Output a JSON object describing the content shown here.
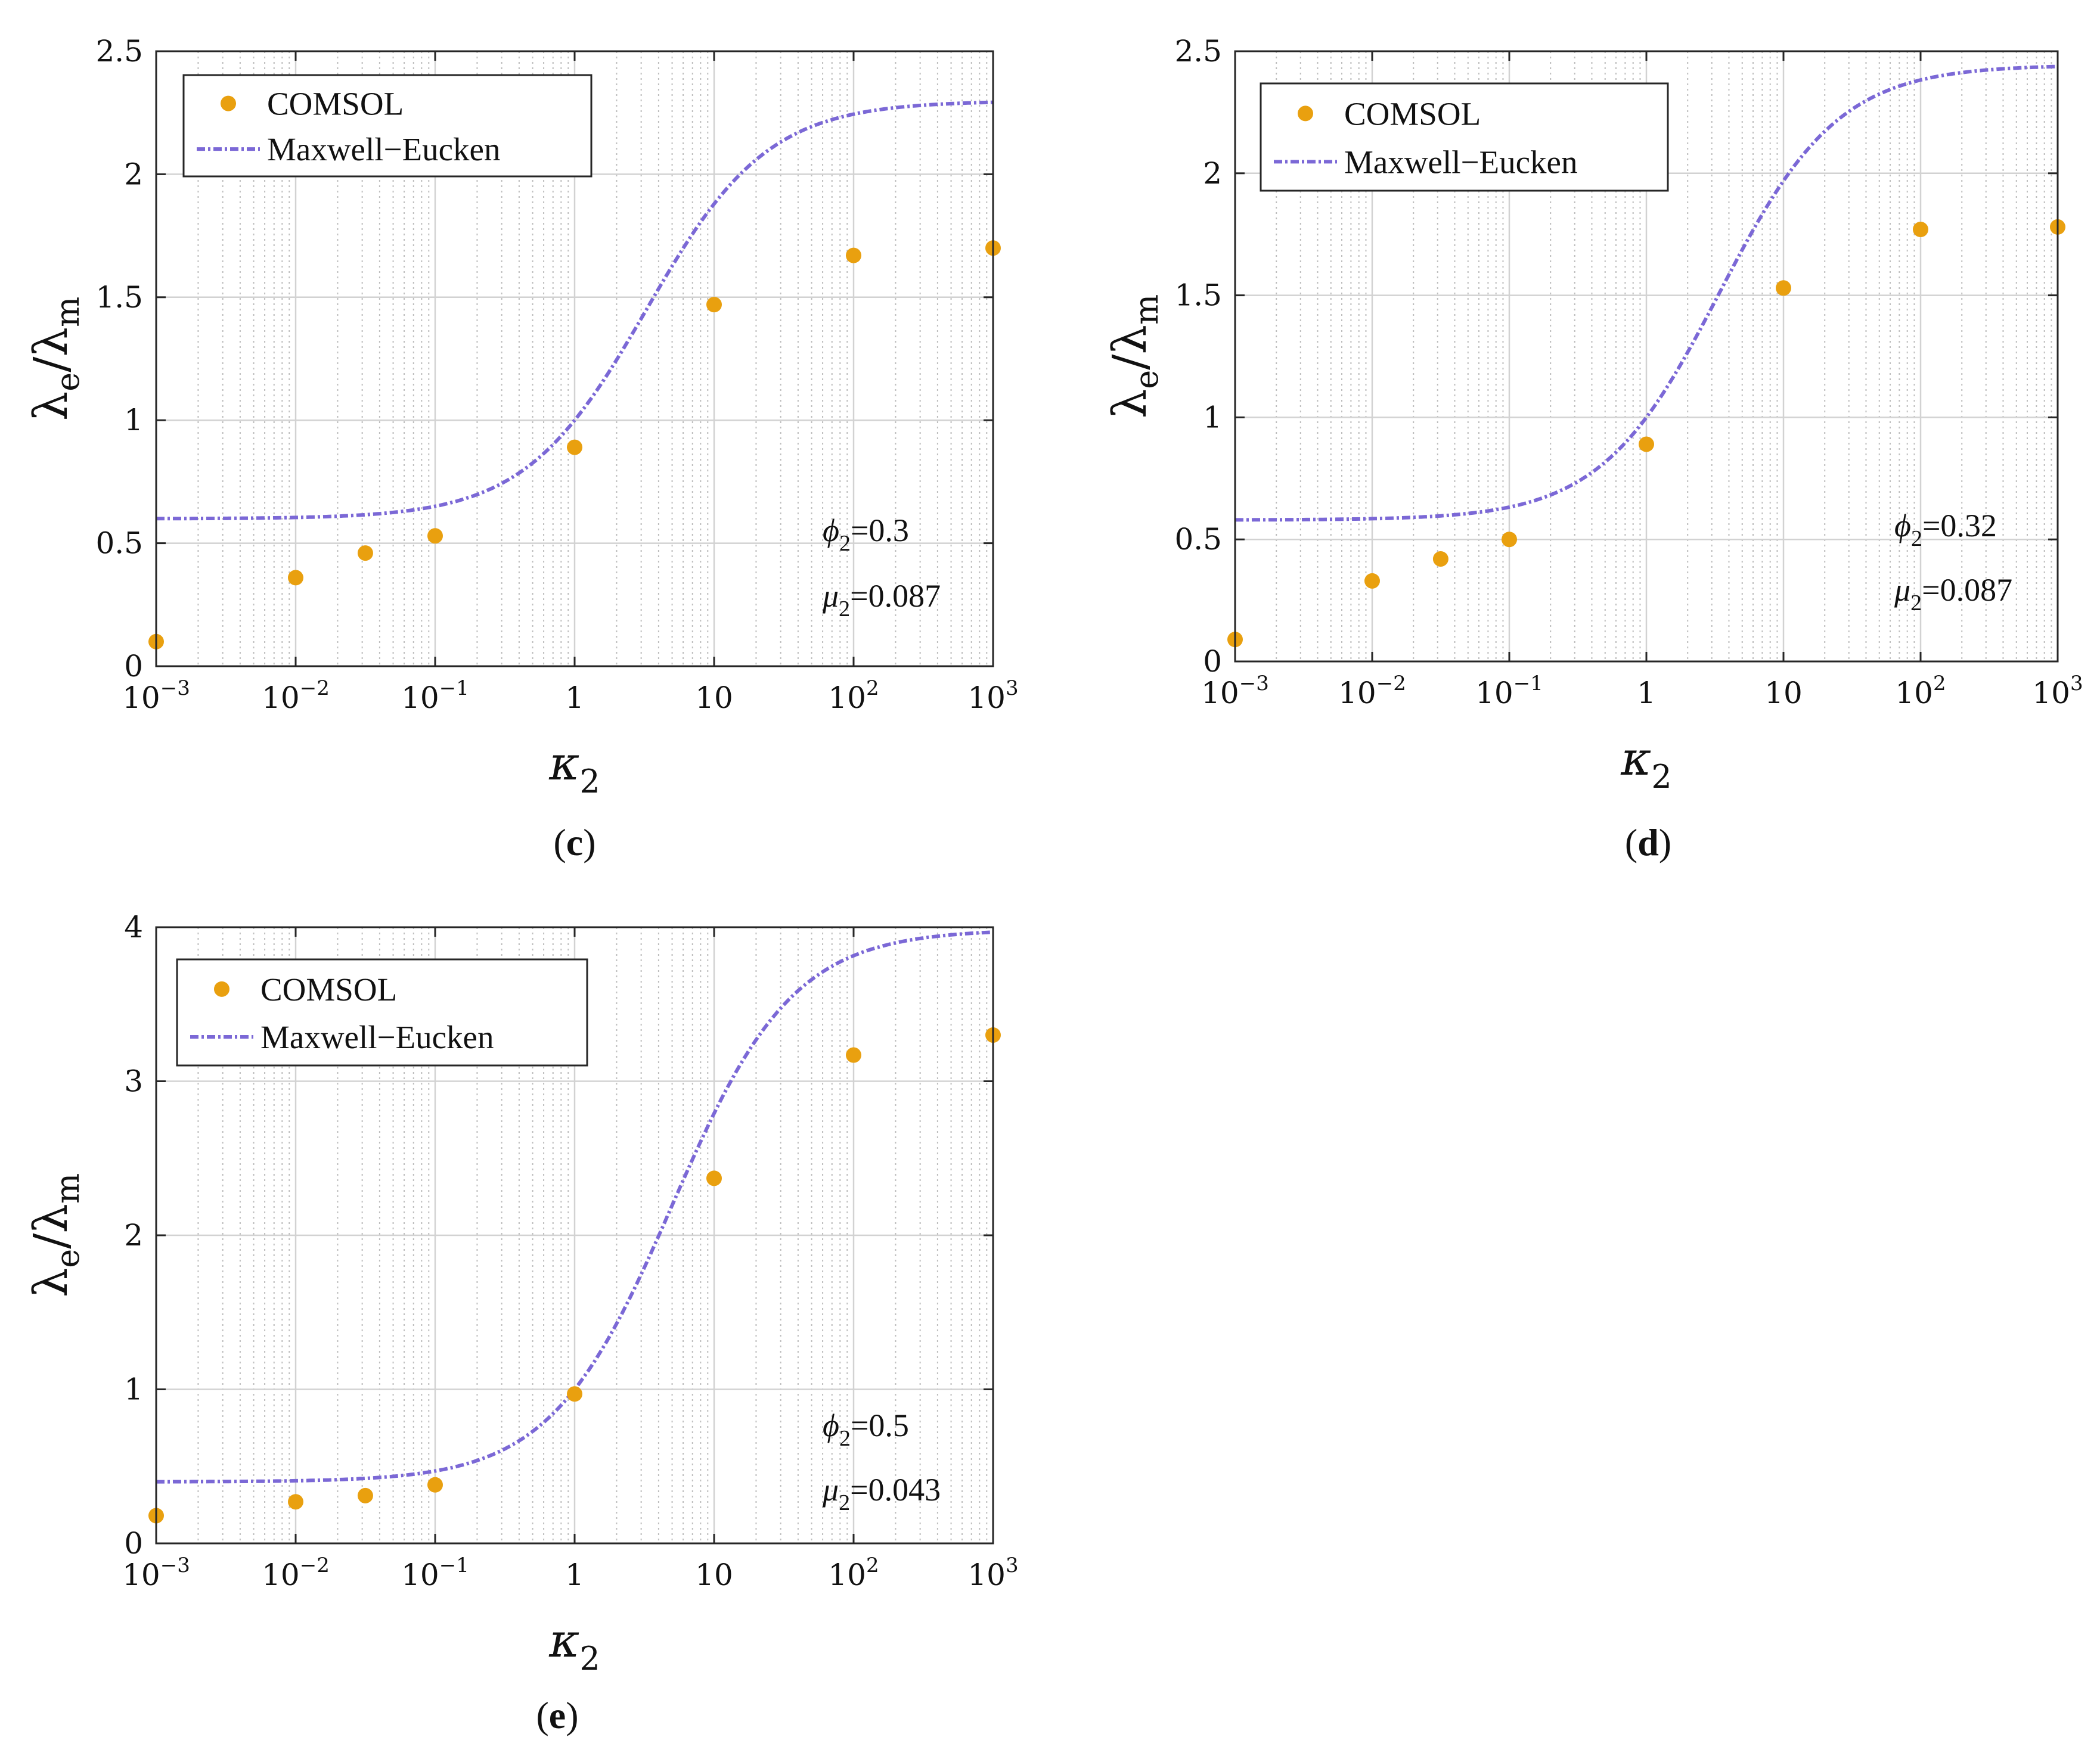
{
  "colors": {
    "comsol": "#E9A00F",
    "maxwell": "#7B68D6",
    "grid_major": "#d2d2d2",
    "grid_minor": "#bdbdbd",
    "axis": "#262626"
  },
  "common": {
    "xlabel": {
      "symbol": "κ",
      "sub": "2"
    },
    "ylabel": {
      "num": "λ",
      "num_sub": "e",
      "slash": "/",
      "den": "λ",
      "den_sub": "m"
    },
    "x_tick_labels": [
      {
        "base": "10",
        "exp": "−3"
      },
      {
        "base": "10",
        "exp": "−2"
      },
      {
        "base": "10",
        "exp": "−1"
      },
      {
        "base": "1",
        "exp": ""
      },
      {
        "base": "10",
        "exp": ""
      },
      {
        "base": "10",
        "exp": "2"
      },
      {
        "base": "10",
        "exp": "3"
      }
    ],
    "legend": {
      "comsol": "COMSOL",
      "maxwell": "Maxwell−Eucken"
    }
  },
  "chart_data": [
    {
      "type": "scatter",
      "panel": "(c)",
      "panel_letter": "c",
      "title": "",
      "x_scale": "log",
      "xlim": [
        0.001,
        1000
      ],
      "ylim": [
        0,
        2.5
      ],
      "y_ticks": [
        0,
        0.5,
        1,
        1.5,
        2,
        2.5
      ],
      "y_tick_labels": [
        "0",
        "0.5",
        "1",
        "1.5",
        "2",
        "2.5"
      ],
      "grid": true,
      "legend_position": "top-left",
      "annotation": {
        "phi_sym": "ϕ",
        "phi_sub": "2",
        "phi_val": "=0.3",
        "mu_sym": "μ",
        "mu_sub": "2",
        "mu_val": "=0.087"
      },
      "series": [
        {
          "name": "COMSOL",
          "kind": "points",
          "x": [
            0.001,
            0.01,
            0.0316,
            0.1,
            1,
            10,
            100,
            1000
          ],
          "y": [
            0.1,
            0.36,
            0.46,
            0.53,
            0.89,
            1.47,
            1.67,
            1.7
          ]
        },
        {
          "name": "Maxwell−Eucken",
          "kind": "curve",
          "params": {
            "phi": 0.3,
            "k_inf_ratio": 0.6
          }
        }
      ]
    },
    {
      "type": "scatter",
      "panel": "(d)",
      "panel_letter": "d",
      "title": "",
      "x_scale": "log",
      "xlim": [
        0.001,
        1000
      ],
      "ylim": [
        0,
        2.5
      ],
      "y_ticks": [
        0,
        0.5,
        1,
        1.5,
        2,
        2.5
      ],
      "y_tick_labels": [
        "0",
        "0.5",
        "1",
        "1.5",
        "2",
        "2.5"
      ],
      "grid": true,
      "legend_position": "top-left",
      "annotation": {
        "phi_sym": "ϕ",
        "phi_sub": "2",
        "phi_val": "=0.32",
        "mu_sym": "μ",
        "mu_sub": "2",
        "mu_val": "=0.087"
      },
      "series": [
        {
          "name": "COMSOL",
          "kind": "points",
          "x": [
            0.001,
            0.01,
            0.0316,
            0.1,
            1,
            10,
            100,
            1000
          ],
          "y": [
            0.09,
            0.33,
            0.42,
            0.5,
            0.89,
            1.53,
            1.77,
            1.78
          ]
        },
        {
          "name": "Maxwell−Eucken",
          "kind": "curve",
          "params": {
            "phi": 0.32,
            "k_inf_ratio": 0.58
          }
        }
      ]
    },
    {
      "type": "scatter",
      "panel": "(e)",
      "panel_letter": "e",
      "title": "",
      "x_scale": "log",
      "xlim": [
        0.001,
        1000
      ],
      "ylim": [
        0,
        4
      ],
      "y_ticks": [
        0,
        1,
        2,
        3,
        4
      ],
      "y_tick_labels": [
        "0",
        "1",
        "2",
        "3",
        "4"
      ],
      "grid": true,
      "legend_position": "top-left",
      "annotation": {
        "phi_sym": "ϕ",
        "phi_sub": "2",
        "phi_val": "=0.5",
        "mu_sym": "μ",
        "mu_sub": "2",
        "mu_val": "=0.043"
      },
      "series": [
        {
          "name": "COMSOL",
          "kind": "points",
          "x": [
            0.001,
            0.01,
            0.0316,
            0.1,
            1,
            10,
            100,
            1000
          ],
          "y": [
            0.18,
            0.27,
            0.31,
            0.38,
            0.97,
            2.37,
            3.17,
            3.3
          ]
        },
        {
          "name": "Maxwell−Eucken",
          "kind": "curve",
          "params": {
            "phi": 0.5,
            "k_inf_ratio": 0.4
          }
        }
      ]
    }
  ]
}
